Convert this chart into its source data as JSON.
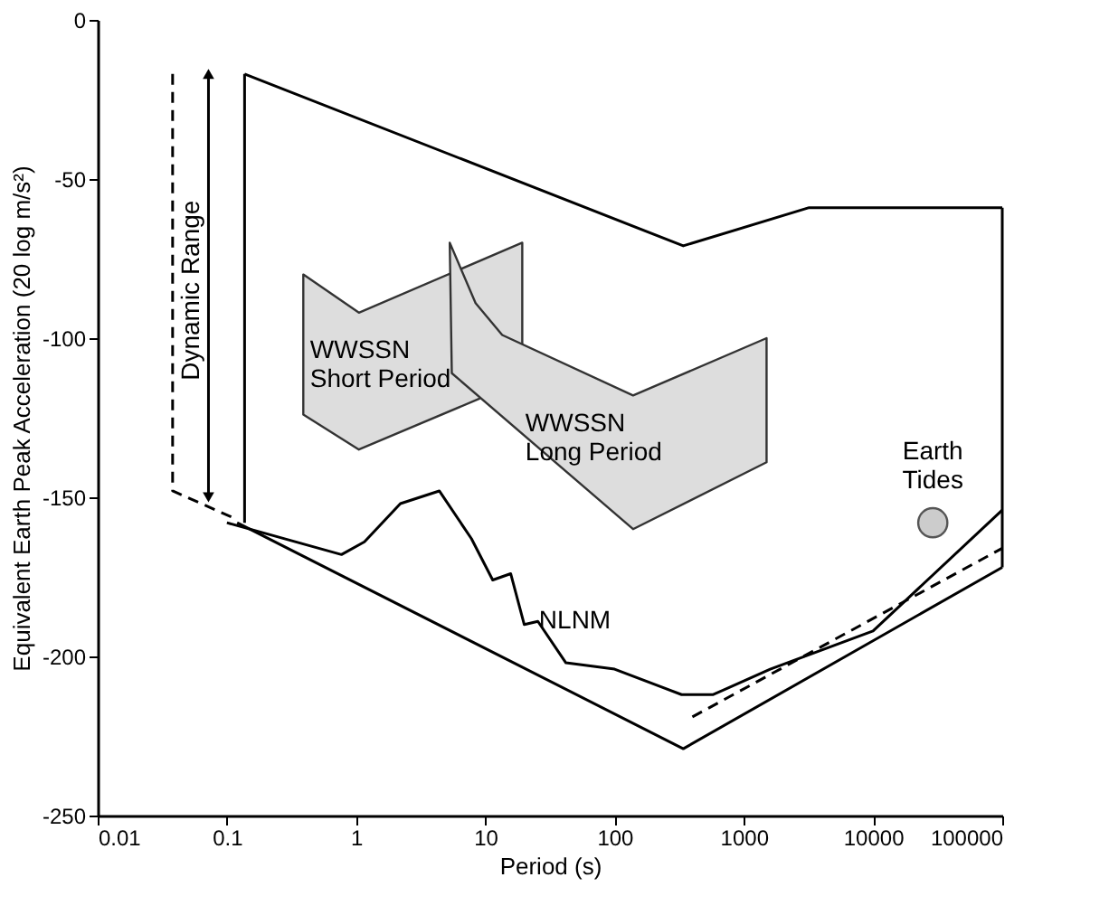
{
  "chart_data": {
    "type": "line",
    "xlabel": "Period (s)",
    "ylabel": "Equivalent Earth Peak Acceleration (20 log m/s²)",
    "log": "x",
    "xlim": [
      0.01,
      100000
    ],
    "ylim": [
      -250,
      0
    ],
    "xticks": [
      0.01,
      0.1,
      1,
      10,
      100,
      1000,
      10000,
      100000
    ],
    "yticks": [
      -250,
      -200,
      -150,
      -100,
      -50,
      0
    ],
    "grid": false,
    "series": [
      {
        "type": "area",
        "color": "#dddddd",
        "x": [
          0.39,
          1.05,
          19.3,
          19.3,
          9,
          1.05,
          0.39
        ],
        "values": [
          -80,
          -92,
          -70,
          -102,
          -119,
          -135,
          -124
        ]
      },
      {
        "type": "area",
        "color": "#dddddd",
        "x": [
          5.3,
          8.4,
          13.5,
          139,
          1500,
          1500,
          139,
          5.5
        ],
        "values": [
          -70,
          -89,
          -99,
          -118,
          -100,
          -139,
          -160,
          -111
        ]
      },
      {
        "color": "#000000",
        "line_style": "solid",
        "x": [
          0.137,
          340,
          3200,
          100000
        ],
        "values": [
          -17,
          -71,
          -59,
          -59
        ]
      },
      {
        "color": "#000000",
        "line_style": "solid",
        "x": [
          0.12,
          340,
          100000
        ],
        "values": [
          -158,
          -229,
          -172
        ]
      },
      {
        "color": "#000000",
        "line_style": "solid",
        "x": [
          0.137,
          0.137
        ],
        "values": [
          -17,
          -158
        ]
      },
      {
        "color": "#000000",
        "line_style": "solid",
        "x": [
          100000,
          100000
        ],
        "values": [
          -59,
          -172
        ]
      },
      {
        "color": "#000000",
        "line_style": "dashed",
        "x": [
          0.038,
          0.038,
          0.12
        ],
        "values": [
          -17,
          -148,
          -157
        ]
      },
      {
        "color": "#000000",
        "line_style": "dashed",
        "x": [
          400,
          100000
        ],
        "values": [
          -219,
          -166
        ]
      },
      {
        "color": "#000000",
        "line_style": "solid",
        "x": [
          0.1,
          0.77,
          1.16,
          2.2,
          4.4,
          7.8,
          11.4,
          15.7,
          20,
          25.5,
          42,
          100,
          330,
          580,
          1600,
          10000,
          100000
        ],
        "values": [
          -158,
          -168,
          -164,
          -152,
          -148,
          -163,
          -176,
          -174,
          -190,
          -189,
          -202,
          -204,
          -212,
          -212,
          -204,
          -192,
          -154
        ]
      },
      {
        "color": "#000000",
        "line_style": "solid",
        "marker": "triangle",
        "x": [
          0.072,
          0.072
        ],
        "values": [
          -17,
          -150
        ]
      },
      {
        "type": "scatter",
        "color": "#cccccc",
        "marker": "circle",
        "x": [
          29000
        ],
        "values": [
          -158
        ]
      }
    ],
    "annotations": [
      {
        "text": "WWSSN\nShort Period",
        "x": 0.44,
        "y": -104
      },
      {
        "text": "WWSSN\nLong Period",
        "x": 20.4,
        "y": -127
      },
      {
        "text": "NLNM",
        "x": 26,
        "y": -189
      },
      {
        "text": "Earth\nTides",
        "x": 29000,
        "y": -158
      },
      {
        "text": "Dynamic Range",
        "x": 0.072,
        "y": -85
      }
    ]
  }
}
